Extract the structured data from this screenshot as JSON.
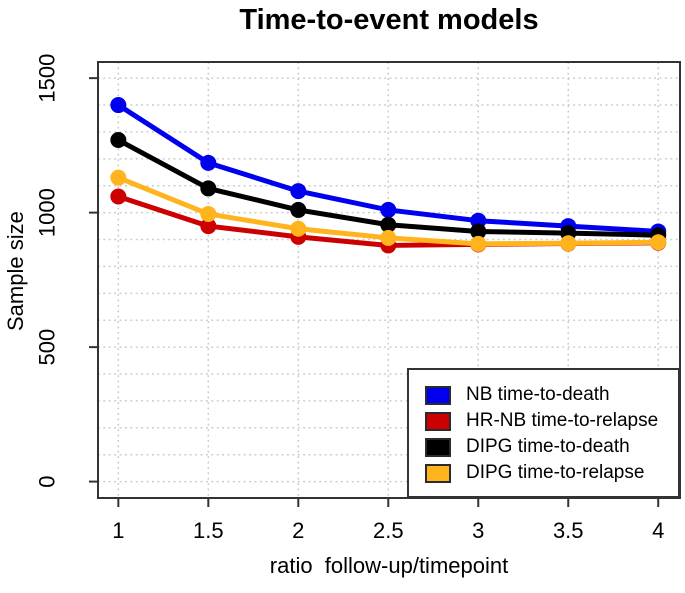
{
  "title": "Time-to-event models",
  "x_axis_label": "ratio  follow-up/timepoint",
  "y_axis_label": "Sample size",
  "chart_data": {
    "type": "line",
    "title": "Time-to-event models",
    "xlabel": "ratio  follow-up/timepoint",
    "ylabel": "Sample size",
    "x": [
      1,
      1.5,
      2,
      2.5,
      3,
      3.5,
      4
    ],
    "x_tick_labels": [
      "1",
      "1.5",
      "2",
      "2.5",
      "3",
      "3.5",
      "4"
    ],
    "y_ticks": [
      0,
      500,
      1000,
      1500
    ],
    "y_tick_labels": [
      "0",
      "500",
      "1000",
      "1500"
    ],
    "xlim": [
      0.887,
      4.121
    ],
    "ylim": [
      -61,
      1560
    ],
    "grid": {
      "show": true,
      "line_style": "dotted",
      "x_step": 0.5,
      "y_step": 100,
      "color": "#c9c9c9"
    },
    "legend_position": "bottom-right",
    "marker": "filled-circle",
    "series": [
      {
        "name": "NB time-to-death",
        "color": "#0000ee",
        "values": [
          1400,
          1185,
          1080,
          1010,
          970,
          950,
          930
        ]
      },
      {
        "name": "HR-NB time-to-relapse",
        "color": "#cc0000",
        "values": [
          1060,
          950,
          910,
          878,
          882,
          885,
          888
        ]
      },
      {
        "name": "DIPG time-to-death",
        "color": "#000000",
        "values": [
          1270,
          1090,
          1010,
          955,
          930,
          924,
          916
        ]
      },
      {
        "name": "DIPG time-to-relapse",
        "color": "#ffb41e",
        "values": [
          1130,
          995,
          940,
          906,
          884,
          886,
          890
        ]
      }
    ]
  }
}
